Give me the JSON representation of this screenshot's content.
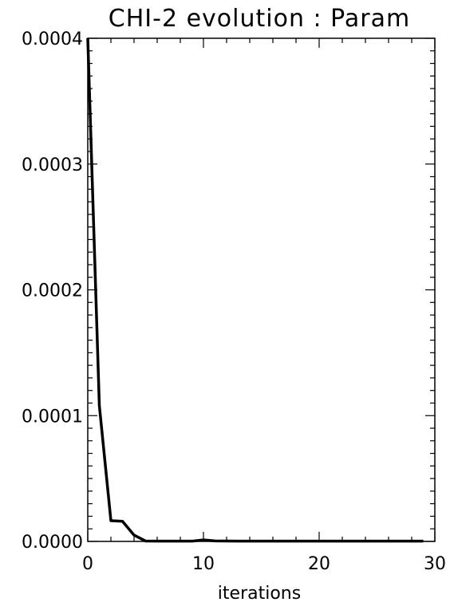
{
  "chart_data": {
    "type": "line",
    "title": "CHI-2 evolution : Param",
    "xlabel": "iterations",
    "ylabel": "",
    "xlim": [
      0,
      30
    ],
    "ylim": [
      0,
      0.0004
    ],
    "x_ticks": [
      0,
      10,
      20,
      30
    ],
    "x_tick_labels": [
      "0",
      "10",
      "20",
      "30"
    ],
    "y_ticks": [
      0,
      0.0001,
      0.0002,
      0.0003,
      0.0004
    ],
    "y_tick_labels": [
      "0.0000",
      "0.0001",
      "0.0002",
      "0.0003",
      "0.0004"
    ],
    "grid": false,
    "series": [
      {
        "x": [
          0,
          1,
          2,
          3,
          4,
          5,
          6,
          7,
          8,
          9,
          10,
          11,
          12,
          13,
          14,
          15,
          16,
          17,
          18,
          19,
          20,
          21,
          22,
          23,
          24,
          25,
          26,
          27,
          28,
          29
        ],
        "y": [
          0.0004,
          0.000108,
          1.65e-05,
          1.6e-05,
          5e-06,
          3e-07,
          2e-07,
          2e-07,
          2e-07,
          2e-07,
          1.2e-06,
          4e-07,
          3e-07,
          2e-07,
          2e-07,
          2e-07,
          2e-07,
          2e-07,
          2e-07,
          2e-07,
          2e-07,
          2e-07,
          2e-07,
          2e-07,
          2e-07,
          2e-07,
          2e-07,
          2e-07,
          2e-07,
          2e-07
        ]
      }
    ]
  }
}
